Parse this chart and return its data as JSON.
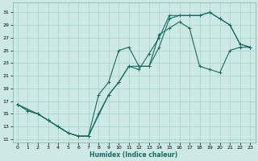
{
  "xlabel": "Humidex (Indice chaleur)",
  "background_color": "#cde9e6",
  "grid_color": "#a8cecc",
  "line_color": "#1a6b5e",
  "xlim": [
    -0.5,
    23.5
  ],
  "ylim": [
    10.5,
    32.5
  ],
  "xticks": [
    0,
    1,
    2,
    3,
    4,
    5,
    6,
    7,
    8,
    9,
    10,
    11,
    12,
    13,
    14,
    15,
    16,
    17,
    18,
    19,
    20,
    21,
    22,
    23
  ],
  "yticks": [
    11,
    13,
    15,
    17,
    19,
    21,
    23,
    25,
    27,
    29,
    31
  ],
  "series": [
    {
      "x": [
        0,
        2,
        3,
        4,
        5,
        6,
        7,
        9,
        10,
        11,
        12,
        13,
        14,
        15,
        16,
        17,
        18,
        19,
        20,
        21,
        22,
        23
      ],
      "y": [
        16.5,
        15.0,
        14.0,
        13.0,
        12.0,
        11.5,
        11.5,
        18.0,
        20.0,
        22.5,
        22.5,
        22.5,
        25.5,
        30.0,
        30.5,
        30.5,
        30.5,
        31.0,
        30.0,
        29.0,
        26.0,
        25.5
      ]
    },
    {
      "x": [
        0,
        1,
        2,
        3,
        4,
        5,
        6,
        7,
        8,
        9,
        10,
        11,
        12,
        13,
        14,
        15,
        16,
        17,
        18,
        19,
        20,
        21,
        22,
        23
      ],
      "y": [
        16.5,
        15.5,
        15.0,
        14.0,
        13.0,
        12.0,
        11.5,
        11.5,
        18.0,
        20.0,
        25.0,
        25.5,
        22.5,
        22.5,
        27.5,
        28.5,
        29.5,
        28.5,
        22.5,
        22.0,
        21.5,
        25.0,
        25.5,
        25.5
      ]
    },
    {
      "x": [
        0,
        1,
        2,
        3,
        4,
        5,
        6,
        7,
        8,
        9,
        10,
        11,
        12,
        13,
        14,
        15,
        16,
        17,
        18,
        19,
        20,
        21,
        22,
        23
      ],
      "y": [
        16.5,
        15.5,
        15.0,
        14.0,
        13.0,
        12.0,
        11.5,
        11.5,
        15.0,
        18.0,
        20.0,
        22.5,
        22.0,
        24.5,
        27.0,
        30.5,
        30.5,
        30.5,
        30.5,
        31.0,
        30.0,
        29.0,
        26.0,
        25.5
      ]
    }
  ]
}
